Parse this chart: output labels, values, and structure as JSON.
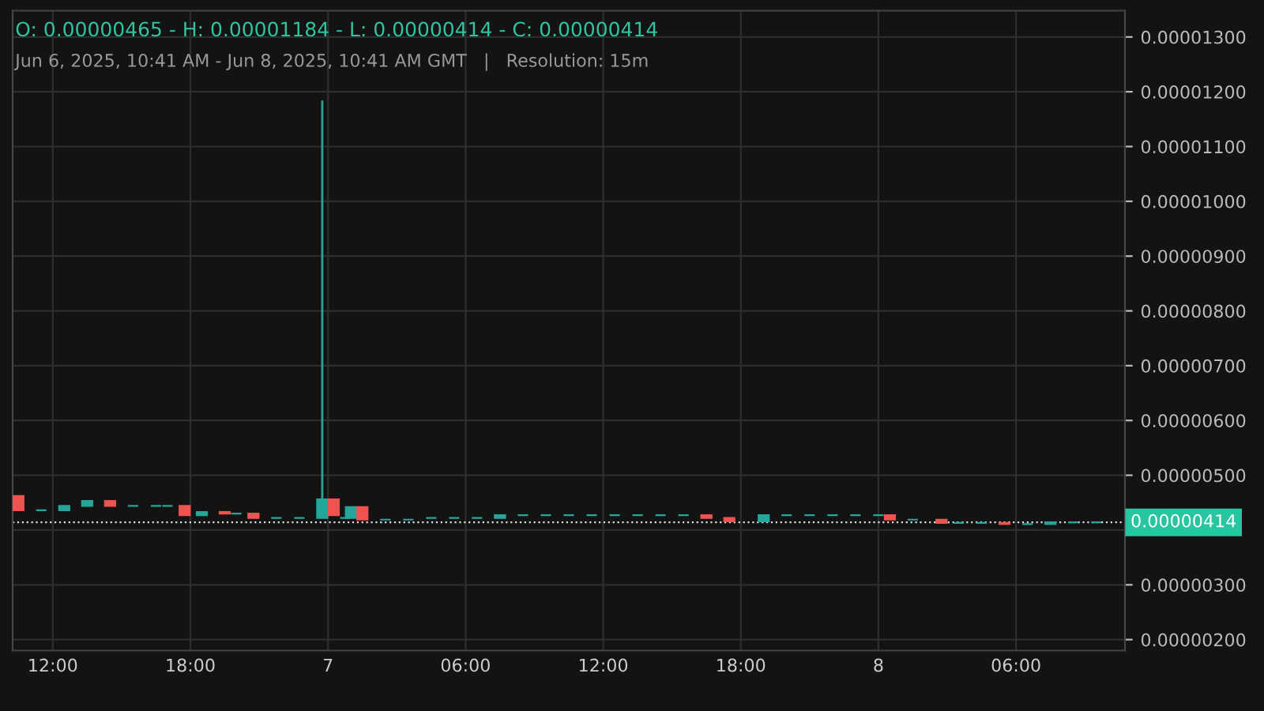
{
  "chart_data": {
    "type": "candlestick",
    "title": "O: 0.00000465 - H: 0.00001184 - L: 0.00000414 - C: 0.00000414",
    "subtitle": "Jun 6, 2025, 10:41 AM - Jun 8, 2025, 10:41 AM GMT   |   Resolution: 15m",
    "x": [
      "2025-06-06T10:30",
      "2025-06-06T11:30",
      "2025-06-06T12:30",
      "2025-06-06T13:30",
      "2025-06-06T14:30",
      "2025-06-06T15:30",
      "2025-06-06T16:30",
      "2025-06-06T17:00",
      "2025-06-06T17:45",
      "2025-06-06T18:30",
      "2025-06-06T19:30",
      "2025-06-06T20:00",
      "2025-06-06T20:45",
      "2025-06-06T21:45",
      "2025-06-06T22:45",
      "2025-06-06T23:45",
      "2025-06-07T00:15",
      "2025-06-07T00:45",
      "2025-06-07T01:00",
      "2025-06-07T01:30",
      "2025-06-07T02:30",
      "2025-06-07T03:30",
      "2025-06-07T04:30",
      "2025-06-07T05:30",
      "2025-06-07T06:30",
      "2025-06-07T07:30",
      "2025-06-07T08:30",
      "2025-06-07T09:30",
      "2025-06-07T10:30",
      "2025-06-07T11:30",
      "2025-06-07T12:30",
      "2025-06-07T13:30",
      "2025-06-07T14:30",
      "2025-06-07T15:30",
      "2025-06-07T16:30",
      "2025-06-07T17:30",
      "2025-06-07T19:00",
      "2025-06-07T20:00",
      "2025-06-07T21:00",
      "2025-06-07T22:00",
      "2025-06-07T23:00",
      "2025-06-08T00:00",
      "2025-06-08T00:30",
      "2025-06-08T01:30",
      "2025-06-08T02:45",
      "2025-06-08T03:30",
      "2025-06-08T04:30",
      "2025-06-08T05:30",
      "2025-06-08T06:30",
      "2025-06-08T07:30",
      "2025-06-08T08:30",
      "2025-06-08T09:30"
    ],
    "ohlc": [
      [
        4.62e-06,
        4.62e-06,
        4.36e-06,
        4.36e-06
      ],
      [
        4.36e-06,
        4.36e-06,
        4.36e-06,
        4.36e-06
      ],
      [
        4.36e-06,
        4.44e-06,
        4.36e-06,
        4.44e-06
      ],
      [
        4.44e-06,
        4.53e-06,
        4.44e-06,
        4.53e-06
      ],
      [
        4.53e-06,
        4.53e-06,
        4.44e-06,
        4.44e-06
      ],
      [
        4.44e-06,
        4.44e-06,
        4.44e-06,
        4.44e-06
      ],
      [
        4.44e-06,
        4.44e-06,
        4.44e-06,
        4.44e-06
      ],
      [
        4.44e-06,
        4.44e-06,
        4.44e-06,
        4.44e-06
      ],
      [
        4.44e-06,
        4.44e-06,
        4.27e-06,
        4.27e-06
      ],
      [
        4.27e-06,
        4.33e-06,
        4.27e-06,
        4.33e-06
      ],
      [
        4.33e-06,
        4.33e-06,
        4.3e-06,
        4.3e-06
      ],
      [
        4.3e-06,
        4.3e-06,
        4.3e-06,
        4.3e-06
      ],
      [
        4.3e-06,
        4.3e-06,
        4.22e-06,
        4.22e-06
      ],
      [
        4.22e-06,
        4.22e-06,
        4.22e-06,
        4.22e-06
      ],
      [
        4.22e-06,
        4.22e-06,
        4.22e-06,
        4.22e-06
      ],
      [
        4.22e-06,
        1.184e-05,
        4.22e-06,
        4.56e-06
      ],
      [
        4.56e-06,
        4.56e-06,
        4.27e-06,
        4.27e-06
      ],
      [
        4.22e-06,
        4.22e-06,
        4.22e-06,
        4.22e-06
      ],
      [
        4.22e-06,
        4.42e-06,
        4.22e-06,
        4.42e-06
      ],
      [
        4.42e-06,
        4.42e-06,
        4.19e-06,
        4.19e-06
      ],
      [
        4.19e-06,
        4.19e-06,
        4.19e-06,
        4.19e-06
      ],
      [
        4.19e-06,
        4.19e-06,
        4.19e-06,
        4.19e-06
      ],
      [
        4.22e-06,
        4.22e-06,
        4.22e-06,
        4.22e-06
      ],
      [
        4.22e-06,
        4.22e-06,
        4.22e-06,
        4.22e-06
      ],
      [
        4.22e-06,
        4.22e-06,
        4.22e-06,
        4.22e-06
      ],
      [
        4.22e-06,
        4.27e-06,
        4.22e-06,
        4.27e-06
      ],
      [
        4.27e-06,
        4.27e-06,
        4.27e-06,
        4.27e-06
      ],
      [
        4.27e-06,
        4.27e-06,
        4.27e-06,
        4.27e-06
      ],
      [
        4.27e-06,
        4.27e-06,
        4.27e-06,
        4.27e-06
      ],
      [
        4.27e-06,
        4.27e-06,
        4.27e-06,
        4.27e-06
      ],
      [
        4.27e-06,
        4.27e-06,
        4.27e-06,
        4.27e-06
      ],
      [
        4.27e-06,
        4.27e-06,
        4.27e-06,
        4.27e-06
      ],
      [
        4.27e-06,
        4.27e-06,
        4.27e-06,
        4.27e-06
      ],
      [
        4.27e-06,
        4.27e-06,
        4.27e-06,
        4.27e-06
      ],
      [
        4.27e-06,
        4.27e-06,
        4.22e-06,
        4.22e-06
      ],
      [
        4.22e-06,
        4.22e-06,
        4.16e-06,
        4.16e-06
      ],
      [
        4.16e-06,
        4.27e-06,
        4.16e-06,
        4.27e-06
      ],
      [
        4.27e-06,
        4.27e-06,
        4.27e-06,
        4.27e-06
      ],
      [
        4.27e-06,
        4.27e-06,
        4.27e-06,
        4.27e-06
      ],
      [
        4.27e-06,
        4.27e-06,
        4.27e-06,
        4.27e-06
      ],
      [
        4.27e-06,
        4.27e-06,
        4.27e-06,
        4.27e-06
      ],
      [
        4.27e-06,
        4.27e-06,
        4.27e-06,
        4.27e-06
      ],
      [
        4.27e-06,
        4.27e-06,
        4.19e-06,
        4.19e-06
      ],
      [
        4.19e-06,
        4.19e-06,
        4.19e-06,
        4.19e-06
      ],
      [
        4.19e-06,
        4.19e-06,
        4.13e-06,
        4.13e-06
      ],
      [
        4.13e-06,
        4.13e-06,
        4.13e-06,
        4.13e-06
      ],
      [
        4.13e-06,
        4.13e-06,
        4.13e-06,
        4.13e-06
      ],
      [
        4.13e-06,
        4.13e-06,
        4.11e-06,
        4.11e-06
      ],
      [
        4.11e-06,
        4.11e-06,
        4.11e-06,
        4.11e-06
      ],
      [
        4.11e-06,
        4.14e-06,
        4.11e-06,
        4.14e-06
      ],
      [
        4.14e-06,
        4.14e-06,
        4.14e-06,
        4.14e-06
      ],
      [
        4.14e-06,
        4.14e-06,
        4.14e-06,
        4.14e-06
      ]
    ],
    "colors": [
      "#ef5350",
      "#26a69a",
      "#26a69a",
      "#26a69a",
      "#ef5350",
      "#26a69a",
      "#26a69a",
      "#26a69a",
      "#ef5350",
      "#26a69a",
      "#ef5350",
      "#26a69a",
      "#ef5350",
      "#26a69a",
      "#26a69a",
      "#26a69a",
      "#ef5350",
      "#26a69a",
      "#26a69a",
      "#ef5350",
      "#26a69a",
      "#26a69a",
      "#26a69a",
      "#26a69a",
      "#26a69a",
      "#26a69a",
      "#26a69a",
      "#26a69a",
      "#26a69a",
      "#26a69a",
      "#26a69a",
      "#26a69a",
      "#26a69a",
      "#26a69a",
      "#ef5350",
      "#ef5350",
      "#26a69a",
      "#26a69a",
      "#26a69a",
      "#26a69a",
      "#26a69a",
      "#26a69a",
      "#ef5350",
      "#26a69a",
      "#ef5350",
      "#26a69a",
      "#26a69a",
      "#ef5350",
      "#26a69a",
      "#26a69a",
      "#26a69a",
      "#26a69a"
    ],
    "xlim": [
      "2025-06-06T10:15",
      "2025-06-08T10:45"
    ],
    "xticks": [
      {
        "value": "2025-06-06T12:00",
        "label": "12:00"
      },
      {
        "value": "2025-06-06T18:00",
        "label": "18:00"
      },
      {
        "value": "2025-06-07T00:00",
        "label": "7"
      },
      {
        "value": "2025-06-07T06:00",
        "label": "06:00"
      },
      {
        "value": "2025-06-07T12:00",
        "label": "12:00"
      },
      {
        "value": "2025-06-07T18:00",
        "label": "18:00"
      },
      {
        "value": "2025-06-08T00:00",
        "label": "8"
      },
      {
        "value": "2025-06-08T06:00",
        "label": "06:00"
      }
    ],
    "ylim": [
      1.8e-06,
      1.348e-05
    ],
    "yticks": [
      {
        "value": 2e-06,
        "label": "0.00000200"
      },
      {
        "value": 3e-06,
        "label": "0.00000300"
      },
      {
        "value": 4e-06,
        "label": null
      },
      {
        "value": 5e-06,
        "label": "0.00000500"
      },
      {
        "value": 6e-06,
        "label": "0.00000600"
      },
      {
        "value": 7e-06,
        "label": "0.00000700"
      },
      {
        "value": 8e-06,
        "label": "0.00000800"
      },
      {
        "value": 9e-06,
        "label": "0.00000900"
      },
      {
        "value": 1e-05,
        "label": "0.00001000"
      },
      {
        "value": 1.1e-05,
        "label": "0.00001100"
      },
      {
        "value": 1.2e-05,
        "label": "0.00001200"
      },
      {
        "value": 1.3e-05,
        "label": "0.00001300"
      }
    ],
    "ref_lines": [
      {
        "axis": "y",
        "value": 4.14e-06,
        "label": "0.00000414",
        "color": "#dddddd",
        "line_style": "dotted"
      }
    ],
    "grid": true
  }
}
